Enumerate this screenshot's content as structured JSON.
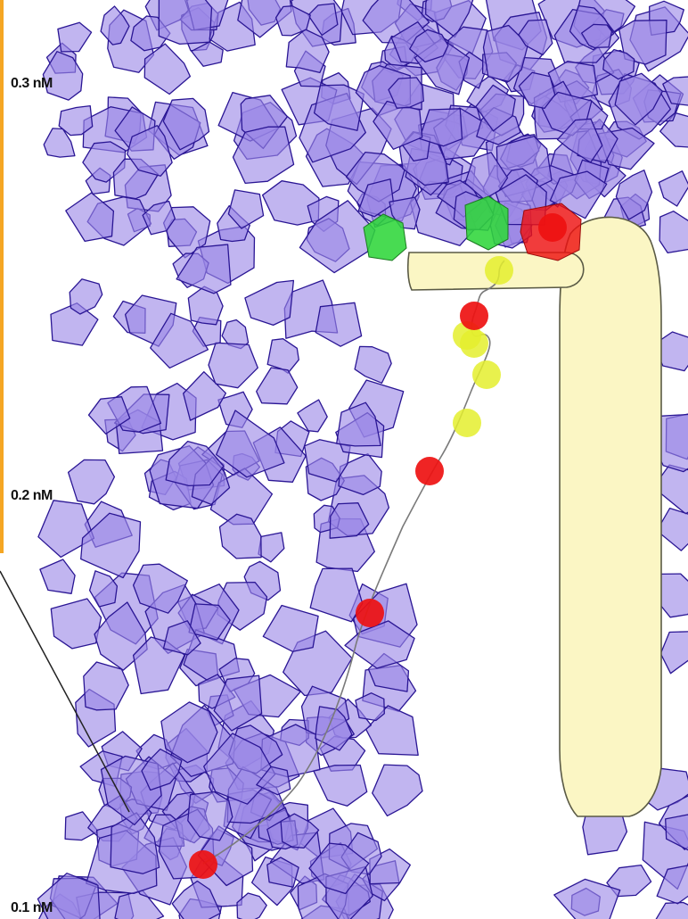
{
  "axis": {
    "labels": [
      "0.3 nM",
      "0.2 nM",
      "0.1 nM"
    ]
  },
  "colors": {
    "polygon_fill": "#9b88e6",
    "polygon_stroke": "#2a1694",
    "trail": "#7a7a7a",
    "red_marker": "#ee1111",
    "green_marker": "#2fd63a",
    "yellow_marker": "#e4ee2e",
    "cell_fill": "#fbf6c4",
    "cell_stroke": "#5a5a45",
    "scale_bar": "#f5a623"
  },
  "markers": {
    "red": 6,
    "yellow": 5,
    "green": 2
  }
}
